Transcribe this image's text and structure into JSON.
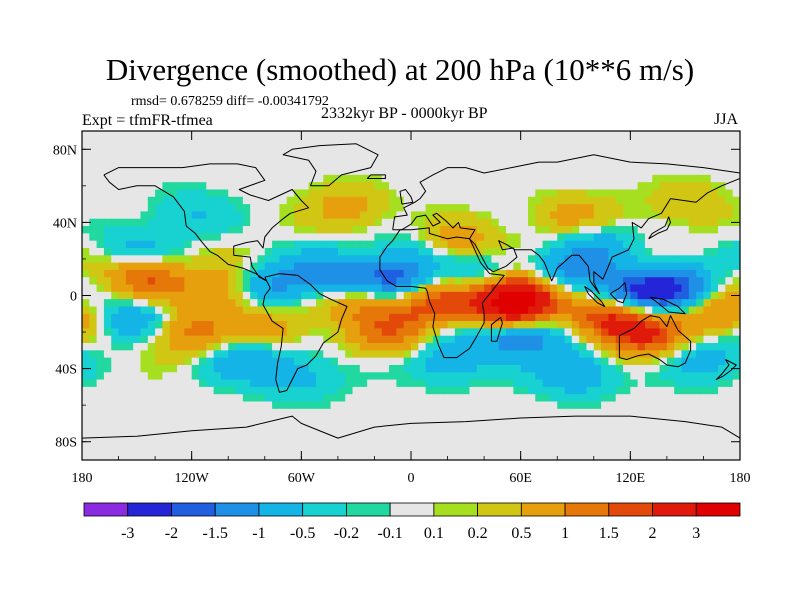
{
  "chart_data": {
    "type": "heatmap",
    "title": "Divergence (smoothed) at 200 hPa (10**6 m/s)",
    "stats_text": "rmsd= 0.678259 diff= -0.00341792",
    "left_label": "Expt = tfmFR-tfmea",
    "center_label": "2332kyr BP - 0000kyr BP",
    "right_label": "JJA",
    "x_ticks": [
      "180",
      "120W",
      "60W",
      "0",
      "60E",
      "120E",
      "180"
    ],
    "x_values": [
      -180,
      -120,
      -60,
      0,
      60,
      120,
      180
    ],
    "y_ticks": [
      "80N",
      "40N",
      "0",
      "40S",
      "80S"
    ],
    "y_values": [
      80,
      40,
      0,
      -40,
      -80
    ],
    "xlim": [
      -180,
      180
    ],
    "ylim": [
      -90,
      90
    ],
    "colorbar": {
      "levels": [
        "-3",
        "-2",
        "-1.5",
        "-1",
        "-0.5",
        "-0.2",
        "-0.1",
        "0.1",
        "0.2",
        "0.5",
        "1",
        "1.5",
        "2",
        "3"
      ],
      "colors": [
        "#8a2be2",
        "#2525d8",
        "#1f5fe0",
        "#1e90e6",
        "#14b4e6",
        "#18d2d2",
        "#20d8a0",
        "#e6e6e6",
        "#a6de20",
        "#d2c614",
        "#e6a00e",
        "#e6780a",
        "#e34a0a",
        "#e01a0a",
        "#e00000"
      ]
    },
    "blobs": [
      {
        "lon": 60,
        "lat": 0,
        "val": 3.2
      },
      {
        "lon": 55,
        "lat": -8,
        "val": 2.4
      },
      {
        "lon": -25,
        "lat": 0,
        "val": 2.0
      },
      {
        "lon": 10,
        "lat": -3,
        "val": 1.8
      },
      {
        "lon": 110,
        "lat": -12,
        "val": 2.3
      },
      {
        "lon": 128,
        "lat": -22,
        "val": 1.6
      },
      {
        "lon": -145,
        "lat": 10,
        "val": 1.6
      },
      {
        "lon": -100,
        "lat": 2,
        "val": 1.4
      },
      {
        "lon": 170,
        "lat": -10,
        "val": 1.1
      },
      {
        "lon": -125,
        "lat": -20,
        "val": 1.3
      },
      {
        "lon": -10,
        "lat": -20,
        "val": 1.2
      },
      {
        "lon": 25,
        "lat": 28,
        "val": 1.0
      },
      {
        "lon": -35,
        "lat": 48,
        "val": 0.7
      },
      {
        "lon": 90,
        "lat": 42,
        "val": 0.8
      },
      {
        "lon": -75,
        "lat": -18,
        "val": 0.9
      },
      {
        "lon": 150,
        "lat": 50,
        "val": 0.5
      },
      {
        "lon": -10,
        "lat": 6,
        "val": -2.4
      },
      {
        "lon": -40,
        "lat": 10,
        "val": -1.6
      },
      {
        "lon": -78,
        "lat": 4,
        "val": -1.5
      },
      {
        "lon": 60,
        "lat": -20,
        "val": -2.2
      },
      {
        "lon": 82,
        "lat": 10,
        "val": -1.3
      },
      {
        "lon": 120,
        "lat": 0,
        "val": -2.0
      },
      {
        "lon": 145,
        "lat": 5,
        "val": -1.6
      },
      {
        "lon": -150,
        "lat": -12,
        "val": -1.2
      },
      {
        "lon": -90,
        "lat": -35,
        "val": -1.0
      },
      {
        "lon": 20,
        "lat": -35,
        "val": -0.9
      },
      {
        "lon": 90,
        "lat": -42,
        "val": -1.0
      },
      {
        "lon": -150,
        "lat": 25,
        "val": -0.7
      },
      {
        "lon": 0,
        "lat": 22,
        "val": -0.6
      },
      {
        "lon": 40,
        "lat": 12,
        "val": -1.0
      },
      {
        "lon": -120,
        "lat": 45,
        "val": -0.5
      },
      {
        "lon": 160,
        "lat": -35,
        "val": -0.8
      },
      {
        "lon": -60,
        "lat": -45,
        "val": -0.6
      },
      {
        "lon": 100,
        "lat": 28,
        "val": -0.9
      }
    ]
  }
}
